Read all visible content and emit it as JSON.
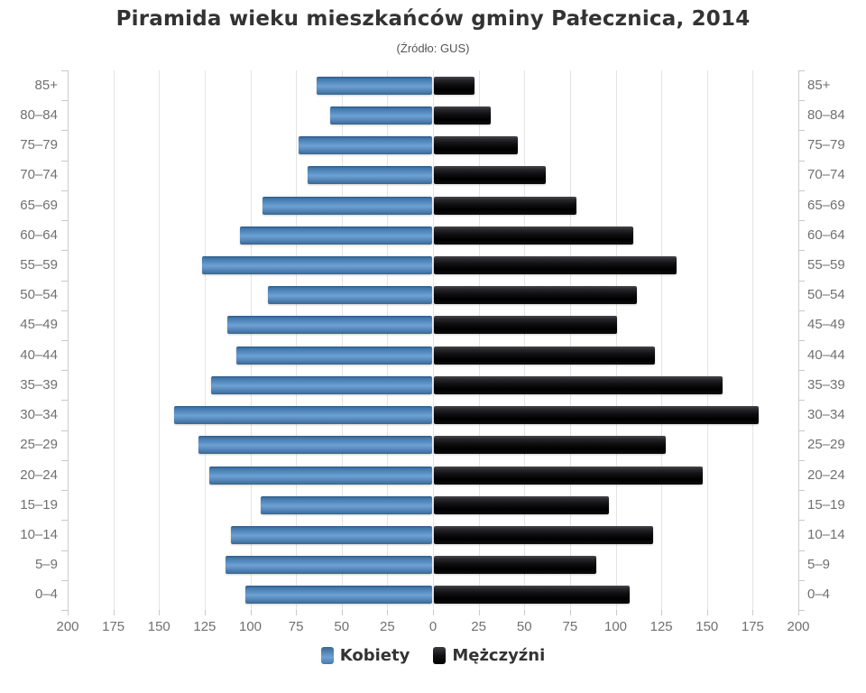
{
  "title": "Piramida wieku mieszkańców gminy Pałecznica, 2014",
  "subtitle": "(Źródło: GUS)",
  "legend": {
    "women": "Kobiety",
    "men": "Mężczyźni"
  },
  "colors": {
    "women_bar": "#5f93c7",
    "men_bar": "#0e0e10",
    "gridline": "#e4e4e4",
    "axis": "#cdcdcd",
    "title_text": "#333333",
    "label_text": "#707070"
  },
  "chart_data": {
    "type": "bar",
    "variant": "population-pyramid",
    "orientation": "horizontal",
    "title": "Piramida wieku mieszkańców gminy Pałecznica, 2014",
    "subtitle": "(Źródło: GUS)",
    "categories": [
      "85+",
      "80–84",
      "75–79",
      "70–74",
      "65–69",
      "60–64",
      "55–59",
      "50–54",
      "45–49",
      "40–44",
      "35–39",
      "30–34",
      "25–29",
      "20–24",
      "15–19",
      "10–14",
      "5–9",
      "0–4"
    ],
    "series": [
      {
        "name": "Kobiety",
        "side": "left",
        "values": [
          63,
          56,
          73,
          68,
          93,
          105,
          126,
          90,
          112,
          107,
          121,
          141,
          128,
          122,
          94,
          110,
          113,
          102
        ]
      },
      {
        "name": "Mężczyźni",
        "side": "right",
        "values": [
          22,
          31,
          46,
          61,
          78,
          109,
          133,
          111,
          100,
          121,
          158,
          178,
          127,
          147,
          96,
          120,
          89,
          107
        ]
      }
    ],
    "x_tick_labels": [
      "200",
      "175",
      "150",
      "125",
      "100",
      "75",
      "50",
      "25",
      "0",
      "25",
      "50",
      "75",
      "100",
      "125",
      "150",
      "175",
      "200"
    ],
    "xlim_per_side": [
      0,
      200
    ],
    "x_tick_step": 25,
    "grid": true,
    "legend_position": "bottom",
    "axis_labels_both_sides": true
  }
}
